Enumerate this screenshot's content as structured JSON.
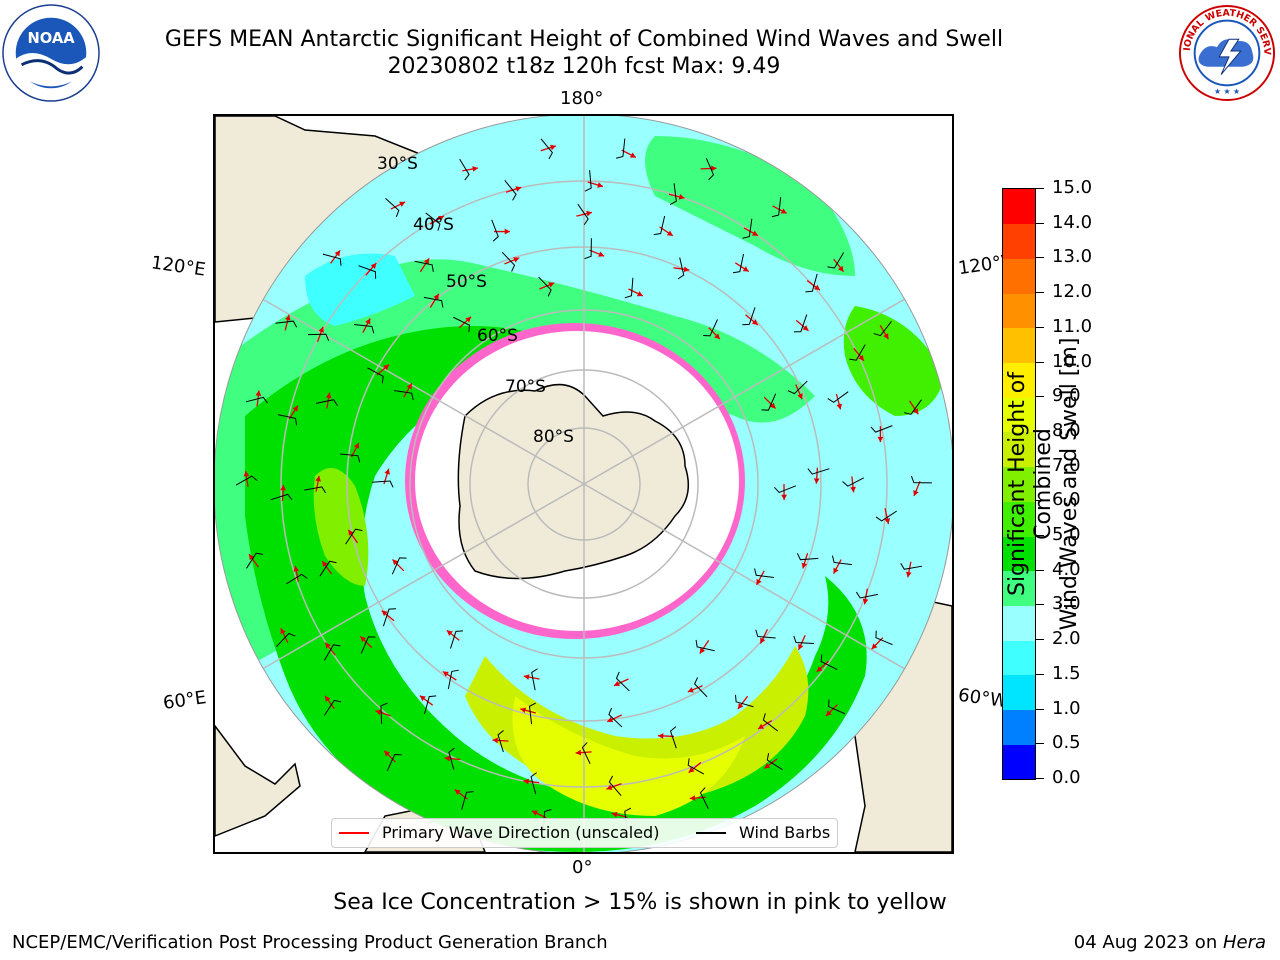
{
  "header": {
    "title_line1": "GEFS MEAN Antarctic Significant Height of Combined Wind Waves and Swell",
    "title_line2": "20230802 t18z 120h fcst   Max: 9.49"
  },
  "logos": {
    "left": {
      "name": "NOAA",
      "text": "NOAA"
    },
    "right": {
      "name": "NATIONAL WEATHER SERVICE"
    }
  },
  "map": {
    "projection": "south-polar-stereographic",
    "longitude_labels": [
      "180°",
      "120°E",
      "120°W",
      "60°E",
      "60°W",
      "0°"
    ],
    "latitude_labels": [
      "30°S",
      "40°S",
      "50°S",
      "60°S",
      "70°S",
      "80°S"
    ],
    "colors": {
      "land": "#efebd8",
      "ocean_low": "#99ffff",
      "grid": "#bbbbbb"
    }
  },
  "colorbar": {
    "label_line1": "Significant Height of Combined",
    "label_line2": "Wind Waves and Swell [m]",
    "ticks": [
      "0.0",
      "0.5",
      "1.0",
      "1.5",
      "2.0",
      "3.0",
      "4.0",
      "5.0",
      "6.0",
      "7.0",
      "8.0",
      "9.0",
      "10.0",
      "11.0",
      "12.0",
      "13.0",
      "14.0",
      "15.0"
    ],
    "colors": [
      "#0000ff",
      "#0080ff",
      "#00e5ff",
      "#40ffff",
      "#99ffff",
      "#40ff80",
      "#00e000",
      "#40f000",
      "#80f000",
      "#c8f000",
      "#e6ff00",
      "#ffee00",
      "#ffc000",
      "#ff9000",
      "#ff7000",
      "#ff4000",
      "#ff0000"
    ]
  },
  "legend": {
    "primary_wave_label": "Primary Wave Direction (unscaled)",
    "wind_barbs_label": "Wind Barbs"
  },
  "footer": {
    "sea_ice_note": "Sea Ice Concentration > 15% is shown in pink to yellow",
    "branch": "NCEP/EMC/Verification Post Processing Product Generation Branch",
    "date_prefix": "04 Aug 2023 on ",
    "machine": "Hera"
  }
}
